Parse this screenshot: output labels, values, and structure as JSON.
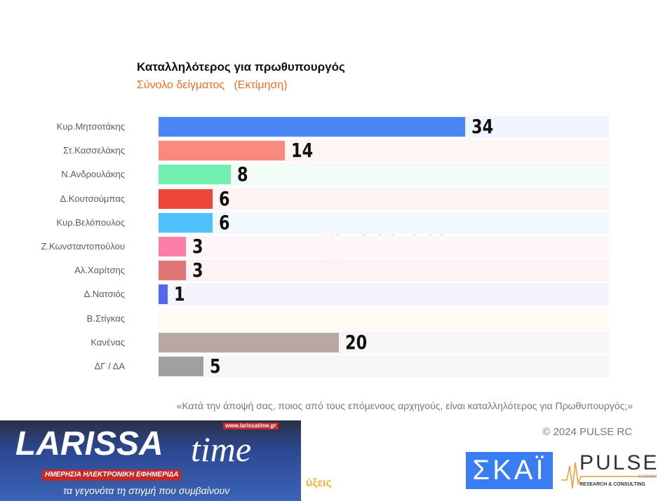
{
  "chart_data": {
    "type": "bar",
    "orientation": "horizontal",
    "title": "Καταλληλότερος για πρωθυπουργός",
    "subtitle": "Σύνολο δείγματος   (Εκτίμηση)",
    "categories": [
      "Κυρ.Μητσοτάκης",
      "Στ.Κασσελάκης",
      "Ν.Ανδρουλάκης",
      "Δ.Κουτσούμπας",
      "Κυρ.Βελόπουλος",
      "Ζ.Κωνσταντοπούλου",
      "Αλ.Χαρίτσης",
      "Δ.Νατσιός",
      "Β.Στίγκας",
      "Κανένας",
      "ΔΓ / ΔΑ"
    ],
    "values": [
      34,
      14,
      8,
      6,
      6,
      3,
      3,
      1,
      null,
      20,
      5
    ],
    "value_labels": [
      "34",
      "14",
      "8",
      "6",
      "6",
      "3",
      "3",
      "1",
      "",
      "20",
      "5"
    ],
    "colors": [
      "#4a86f5",
      "#fa8a80",
      "#72efae",
      "#ef463c",
      "#4fc1fb",
      "#fb7fa9",
      "#e07575",
      "#5566f2",
      "#f5c58a",
      "#b8a8a1",
      "#a0a0a0"
    ],
    "track_colors": [
      "#f1f5fe",
      "#fef5f4",
      "#f2fdf7",
      "#fef4f3",
      "#f1f9fe",
      "#fef6f8",
      "#fcf4f4",
      "#f3f4fe",
      "#fffaf2",
      "#f8f6f5",
      "#f7f7f7"
    ],
    "xlim": [
      0,
      50
    ],
    "grid": false
  },
  "footer": {
    "question": "«Κατά την άποψή σας, ποιος από τους επόμενους αρχηγούς, είναι καταλληλότερος για Πρωθυπουργός;»",
    "copyright": "© 2024 PULSE RC",
    "fragment": "ύξεις"
  },
  "logos": {
    "larissa_main": "LARISSA",
    "larissa_time": "time",
    "larissa_url": "www.larissatime.gr",
    "larissa_tag": "ΗΜΕΡΗΣΙΑ ΗΛΕΚΤΡΟΝΙΚΗ ΕΦΗΜΕΡΙΔΑ",
    "larissa_slogan": "τα γεγονότα τη στιγμή που συμβαίνουν",
    "skai": "ΣΚΑΪ",
    "pulse": "PULSE",
    "pulse_sub": "RESEARCH & CONSULTING",
    "pulse_kosmon": "KOSMON"
  }
}
